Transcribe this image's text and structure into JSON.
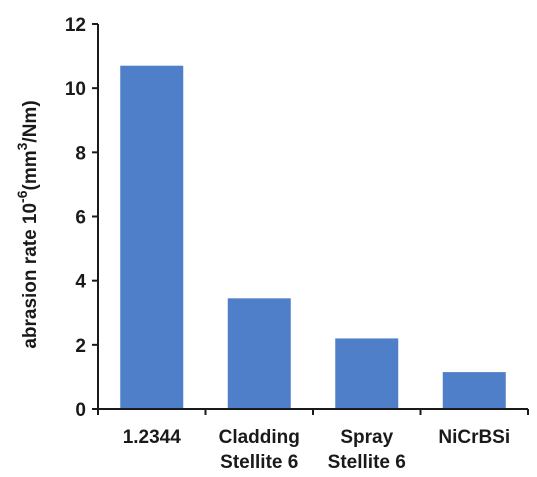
{
  "chart_data": {
    "type": "bar",
    "categories": [
      [
        "1.2344"
      ],
      [
        "Cladding",
        "Stellite 6"
      ],
      [
        "Spray",
        "Stellite 6"
      ],
      [
        "NiCrBSi"
      ]
    ],
    "values": [
      10.7,
      3.45,
      2.2,
      1.15
    ],
    "ylabel": {
      "text": "abrasion rate",
      "base": "10",
      "exp": "-6",
      "unit_pre": "(mm",
      "unit_exp": "3",
      "unit_post": "/Nm)"
    },
    "xlabel": "",
    "ylim": [
      0,
      12
    ],
    "yticks": [
      0,
      2,
      4,
      6,
      8,
      10,
      12
    ],
    "bar_color": "#4f7fc8",
    "grid": false,
    "legend": "none"
  }
}
